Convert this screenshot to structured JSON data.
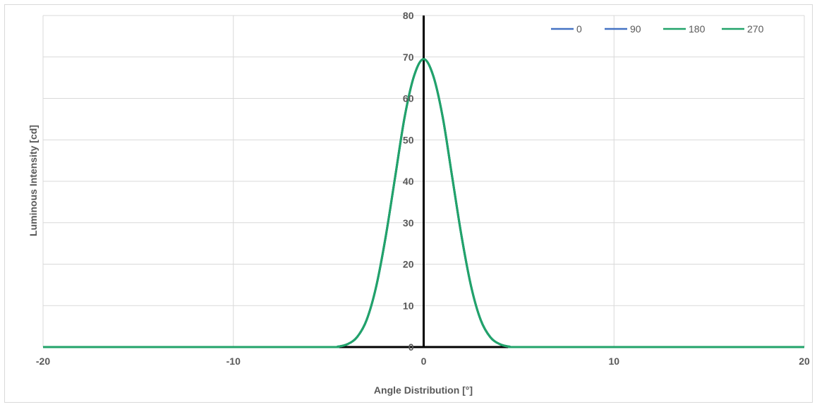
{
  "chart_data": {
    "type": "line",
    "title": "",
    "xlabel": "Angle Distribution [°]",
    "ylabel": "Luminous Intensity [cd]",
    "xlim": [
      -20,
      20
    ],
    "ylim": [
      0,
      80
    ],
    "x_ticks": [
      -20,
      -10,
      0,
      10,
      20
    ],
    "x_tick_labels": [
      "-20",
      "-10",
      "0",
      "10",
      "20"
    ],
    "y_ticks": [
      0,
      10,
      20,
      30,
      40,
      50,
      60,
      70,
      80
    ],
    "y_tick_labels": [
      "0",
      "10",
      "20",
      "30",
      "40",
      "50",
      "60",
      "70",
      "80"
    ],
    "grid": true,
    "legend_position": "top-right",
    "x": [
      -20,
      -10,
      -5,
      -4.5,
      -4,
      -3.5,
      -3,
      -2.5,
      -2,
      -1.5,
      -1,
      -0.5,
      0,
      0.5,
      1,
      1.5,
      2,
      2.5,
      3,
      3.5,
      4,
      4.5,
      5,
      10,
      20
    ],
    "series": [
      {
        "name": "0",
        "color": "#4472c4",
        "values": [
          0,
          0,
          0,
          0.1,
          0.7,
          2.4,
          6.5,
          14.5,
          26.5,
          41.0,
          55.5,
          65.5,
          69.5,
          65.5,
          55.5,
          41.0,
          26.5,
          14.5,
          6.5,
          2.4,
          0.7,
          0.1,
          0,
          0,
          0
        ]
      },
      {
        "name": "90",
        "color": "#4472c4",
        "values": [
          0,
          0,
          0,
          0.1,
          0.7,
          2.4,
          6.5,
          14.5,
          26.5,
          41.0,
          55.5,
          65.5,
          69.5,
          65.5,
          55.5,
          41.0,
          26.5,
          14.5,
          6.5,
          2.4,
          0.7,
          0.1,
          0,
          0,
          0
        ]
      },
      {
        "name": "180",
        "color": "#22a36a",
        "values": [
          0,
          0,
          0,
          0.1,
          0.7,
          2.4,
          6.5,
          14.5,
          26.5,
          41.0,
          55.5,
          65.5,
          69.5,
          65.5,
          55.5,
          41.0,
          26.5,
          14.5,
          6.5,
          2.4,
          0.7,
          0.1,
          0,
          0,
          0
        ]
      },
      {
        "name": "270",
        "color": "#22a36a",
        "values": [
          0,
          0,
          0,
          0.1,
          0.7,
          2.4,
          6.5,
          14.5,
          26.5,
          41.0,
          55.5,
          65.5,
          69.5,
          65.5,
          55.5,
          41.0,
          26.5,
          14.5,
          6.5,
          2.4,
          0.7,
          0.1,
          0,
          0,
          0
        ]
      }
    ]
  }
}
